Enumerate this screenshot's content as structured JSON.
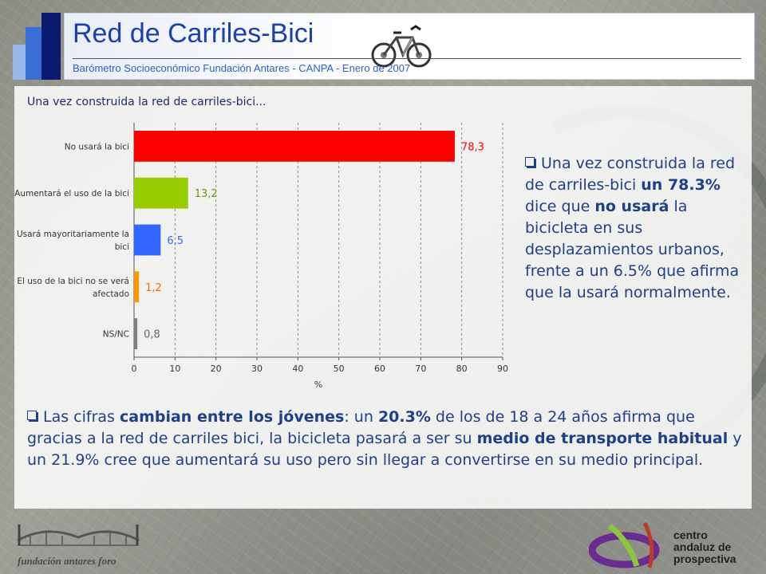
{
  "header": {
    "title": "Red de Carriles-Bici",
    "subtitle": "Barómetro Socioeconómico Fundación Antares - CANPA - Enero de 2007"
  },
  "chart_caption": "Una vez construida la red de carriles-bici...",
  "chart_data": {
    "type": "bar",
    "orientation": "horizontal",
    "categories": [
      "No usará la bici",
      "Aumentará el uso de la bici",
      "Usará mayoritariamente la bici",
      "El uso de la bici no se verá afectado",
      "NS/NC"
    ],
    "values": [
      78.3,
      13.2,
      6.5,
      1.2,
      0.8
    ],
    "value_labels": [
      "78,3",
      "13,2",
      "6,5",
      "1,2",
      "0,8"
    ],
    "colors": [
      "#ff0000",
      "#99cc00",
      "#3366ff",
      "#ff9900",
      "#808080"
    ],
    "label_colors": [
      "#ff0000",
      "#669900",
      "#3366ff",
      "#ff6600",
      "#666666"
    ],
    "xlabel": "%",
    "ylabel": "",
    "xlim": [
      0,
      90
    ],
    "xticks": [
      0,
      10,
      20,
      30,
      40,
      50,
      60,
      70,
      80,
      90
    ],
    "grid": "vertical dashed",
    "legend": "none"
  },
  "side_text": {
    "p1": "Una vez construida la red de carriles-bici ",
    "b1": "un 78.3%",
    "p2": " dice que ",
    "b2": "no usará",
    "p3": " la bicicleta en sus desplazamientos urbanos, frente a un 6.5% que afirma que la usará normalmente."
  },
  "bottom_text": {
    "p1": "Las cifras ",
    "b1": "cambian entre los jóvenes",
    "p2": ": un ",
    "b2": "20.3%",
    "p3": " de los de 18 a 24 años afirma que gracias a la red de carriles bici, la bicicleta pasará a ser su ",
    "b3": "medio de transporte habitual",
    "p4": " y un 21.9% cree que aumentará su uso pero sin llegar a convertirse en su medio principal."
  },
  "footer": {
    "left_logo_text": "fundación antares foro",
    "right_logo_lines": [
      "centro",
      "andaluz de",
      "prospectiva"
    ]
  }
}
